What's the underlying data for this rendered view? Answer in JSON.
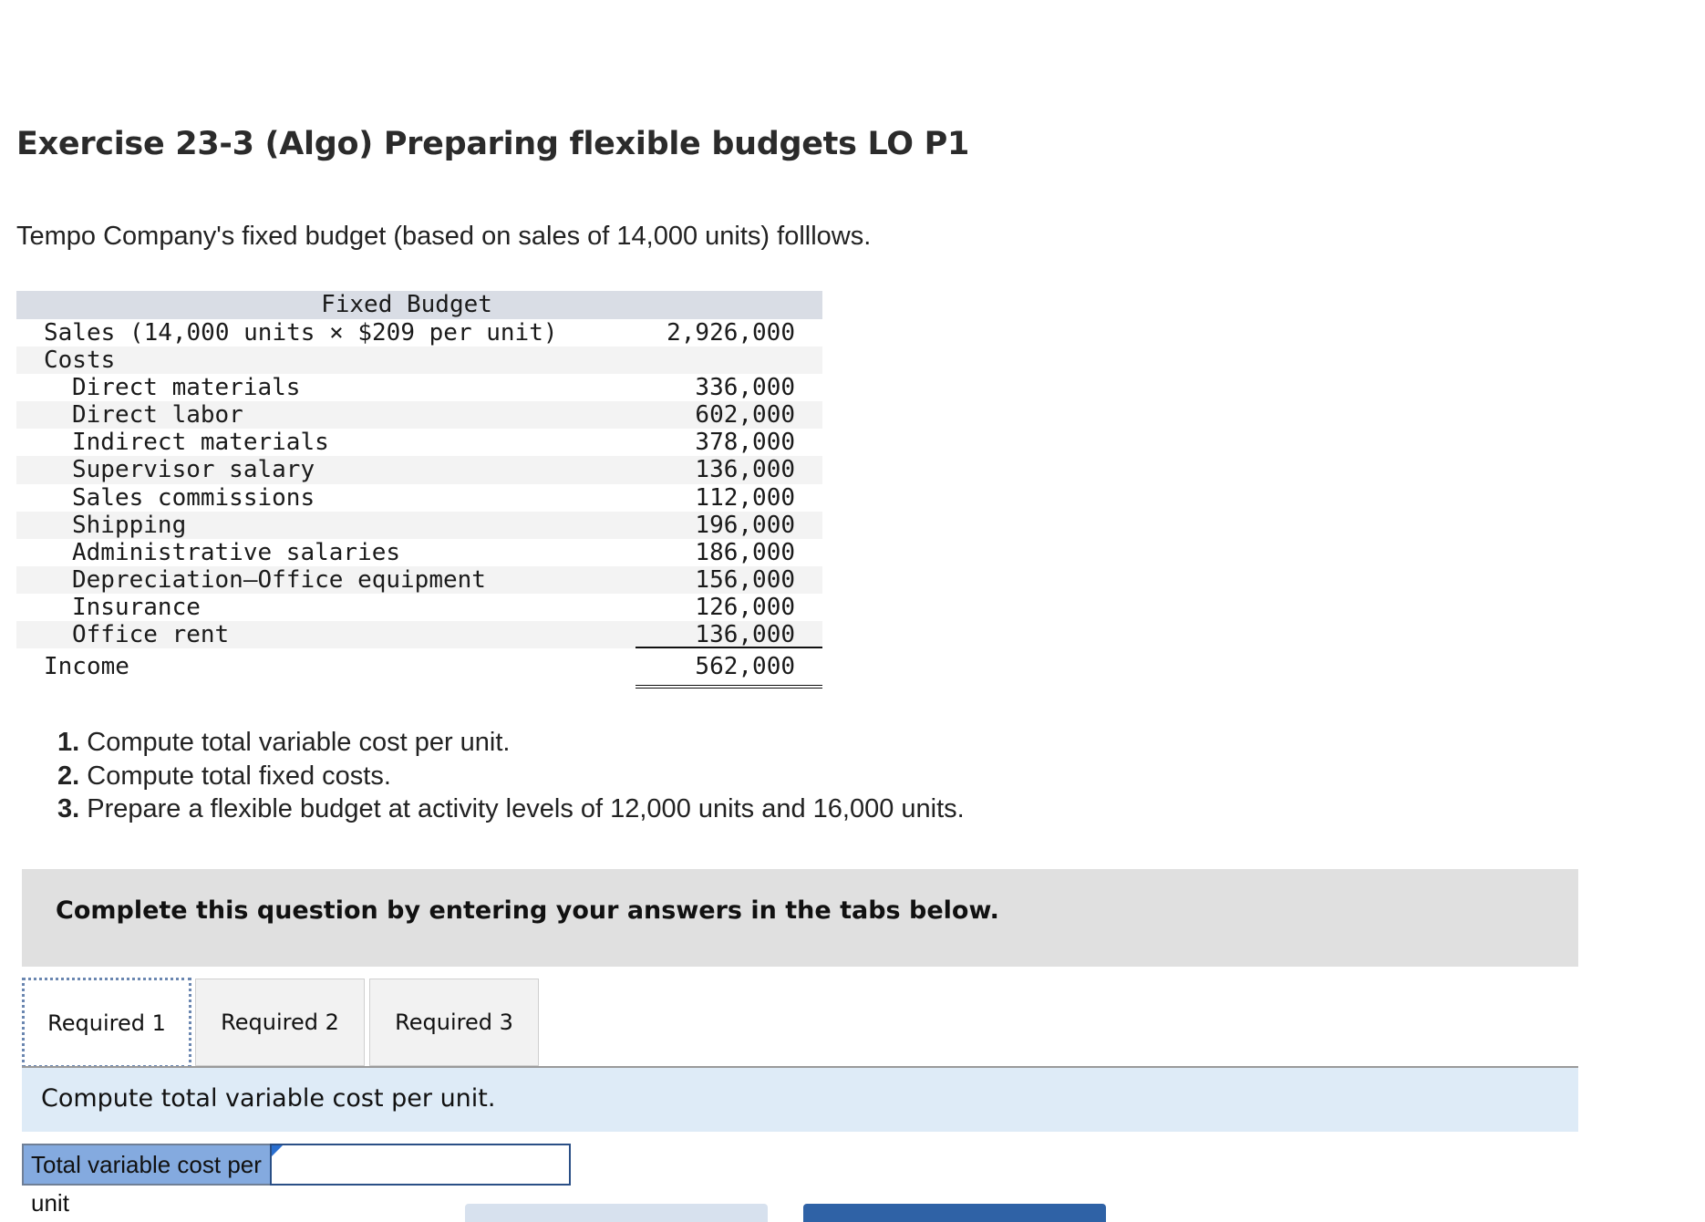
{
  "exercise": {
    "title": "Exercise 23-3 (Algo) Preparing flexible budgets LO P1",
    "intro": "Tempo Company's fixed budget (based on sales of 14,000 units) folllows."
  },
  "budget": {
    "header": "Fixed Budget",
    "sales_label": "Sales (14,000 units × $209 per unit)",
    "sales_amount": "2,926,000",
    "costs_label": "Costs",
    "costs": [
      {
        "label": "Direct materials",
        "amount": "336,000"
      },
      {
        "label": "Direct labor",
        "amount": "602,000"
      },
      {
        "label": "Indirect materials",
        "amount": "378,000"
      },
      {
        "label": "Supervisor salary",
        "amount": "136,000"
      },
      {
        "label": "Sales commissions",
        "amount": "112,000"
      },
      {
        "label": "Shipping",
        "amount": "196,000"
      },
      {
        "label": "Administrative salaries",
        "amount": "186,000"
      },
      {
        "label": "Depreciation—Office equipment",
        "amount": "156,000"
      },
      {
        "label": "Insurance",
        "amount": "126,000"
      },
      {
        "label": "Office rent",
        "amount": "136,000"
      }
    ],
    "income_label": "Income",
    "income_amount": "562,000"
  },
  "instructions": [
    {
      "num": "1.",
      "text": "Compute total variable cost per unit."
    },
    {
      "num": "2.",
      "text": "Compute total fixed costs."
    },
    {
      "num": "3.",
      "text": "Prepare a flexible budget at activity levels of 12,000 units and 16,000 units."
    }
  ],
  "banner": "Complete this question by entering your answers in the tabs below.",
  "tabs": [
    {
      "label": "Required 1",
      "active": true
    },
    {
      "label": "Required 2",
      "active": false
    },
    {
      "label": "Required 3",
      "active": false
    }
  ],
  "tab_content": {
    "prompt": "Compute total variable cost per unit.",
    "answer_label": "Total variable cost per unit",
    "answer_value": ""
  }
}
